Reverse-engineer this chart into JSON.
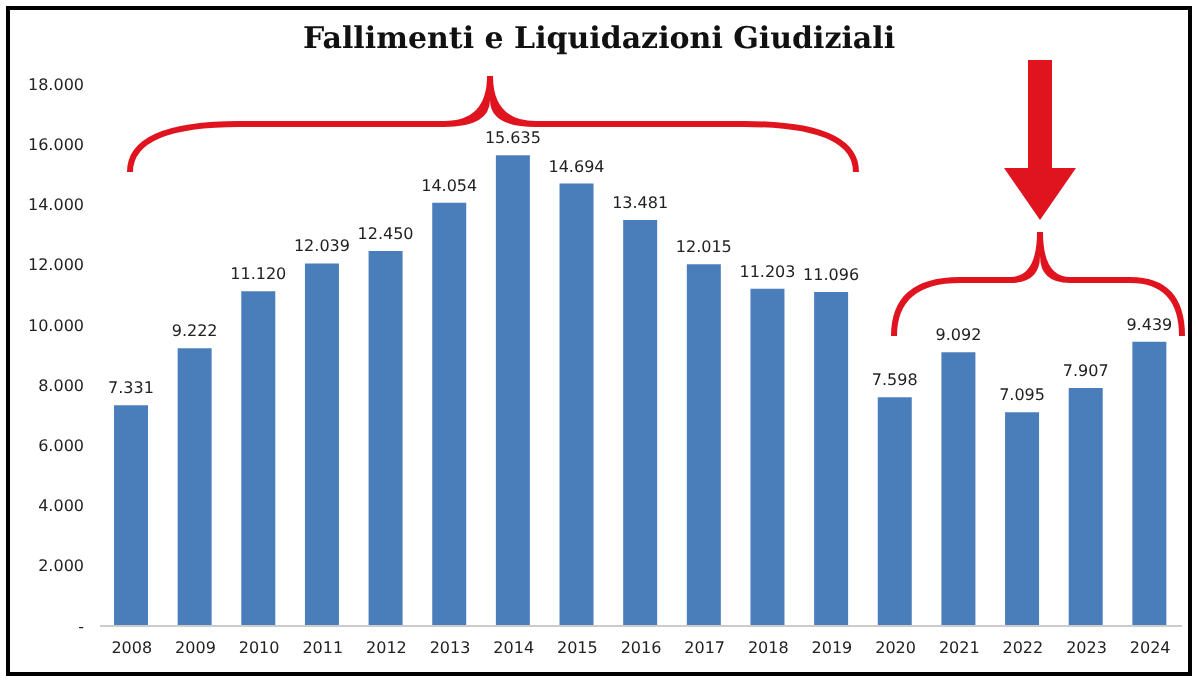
{
  "chart_data": {
    "type": "bar",
    "title": "Fallimenti e Liquidazioni Giudiziali",
    "categories": [
      "2008",
      "2009",
      "2010",
      "2011",
      "2012",
      "2013",
      "2014",
      "2015",
      "2016",
      "2017",
      "2018",
      "2019",
      "2020",
      "2021",
      "2022",
      "2023",
      "2024"
    ],
    "values": [
      7331,
      9222,
      11120,
      12039,
      12450,
      14054,
      15635,
      14694,
      13481,
      12015,
      11203,
      11096,
      7598,
      9092,
      7095,
      7907,
      9439
    ],
    "value_labels": [
      "7.331",
      "9.222",
      "11.120",
      "12.039",
      "12.450",
      "14.054",
      "15.635",
      "14.694",
      "13.481",
      "12.015",
      "11.203",
      "11.096",
      "7.598",
      "9.092",
      "7.095",
      "7.907",
      "9.439"
    ],
    "color": "#4a7ebb",
    "ylim": [
      0,
      18000
    ],
    "yticks": [
      {
        "value": 0,
        "label": "-"
      },
      {
        "value": 2000,
        "label": "2.000"
      },
      {
        "value": 4000,
        "label": "4.000"
      },
      {
        "value": 6000,
        "label": "6.000"
      },
      {
        "value": 8000,
        "label": "8.000"
      },
      {
        "value": 10000,
        "label": "10.000"
      },
      {
        "value": 12000,
        "label": "12.000"
      },
      {
        "value": 14000,
        "label": "14.000"
      },
      {
        "value": 16000,
        "label": "16.000"
      },
      {
        "value": 18000,
        "label": "18.000"
      }
    ]
  }
}
